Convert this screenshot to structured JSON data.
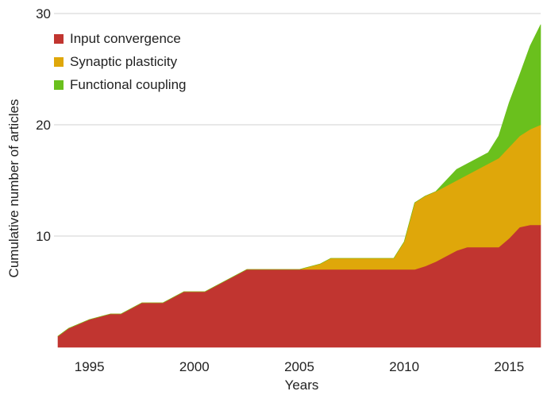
{
  "chart_data": {
    "type": "area",
    "stacked": true,
    "x": [
      1993.5,
      1994,
      1995,
      1996,
      1996.5,
      1997.5,
      1998.5,
      1999.5,
      2000.5,
      2001.5,
      2002.5,
      2003,
      2004,
      2005,
      2006,
      2006.5,
      2007,
      2008,
      2009,
      2009.5,
      2010,
      2010.5,
      2011,
      2011.5,
      2012,
      2012.5,
      2013,
      2014,
      2014.5,
      2015,
      2015.5,
      2016,
      2016.5
    ],
    "series": [
      {
        "name": "Input convergence",
        "color": "#c13530",
        "values": [
          1,
          1.7,
          2.5,
          3,
          3,
          4,
          4,
          5,
          5,
          6,
          7,
          7,
          7,
          7,
          7,
          7,
          7,
          7,
          7,
          7,
          7,
          7,
          7.3,
          7.7,
          8.2,
          8.7,
          9,
          9,
          9,
          9.8,
          10.8,
          11,
          11
        ]
      },
      {
        "name": "Synaptic plasticity",
        "color": "#dfa70a",
        "values": [
          0,
          0,
          0,
          0,
          0,
          0,
          0,
          0,
          0,
          0,
          0,
          0,
          0,
          0,
          0.5,
          1,
          1,
          1,
          1,
          1,
          2.5,
          6,
          6.3,
          6.3,
          6.3,
          6.3,
          6.5,
          7.5,
          8,
          8.2,
          8.2,
          8.6,
          9
        ]
      },
      {
        "name": "Functional coupling",
        "color": "#6ac01d",
        "values": [
          0,
          0,
          0,
          0,
          0,
          0,
          0,
          0,
          0,
          0,
          0,
          0,
          0,
          0,
          0,
          0,
          0,
          0,
          0,
          0,
          0,
          0,
          0,
          0,
          0.5,
          1,
          1,
          1,
          2,
          4,
          5.5,
          7.5,
          9
        ]
      }
    ],
    "xlim": [
      1993.5,
      2016.5
    ],
    "ylim": [
      0,
      30
    ],
    "x_ticks": [
      1995,
      2000,
      2005,
      2010,
      2015
    ],
    "y_ticks": [
      10,
      20,
      30
    ],
    "xlabel": "Years",
    "ylabel": "Cumulative number of articles",
    "grid": true,
    "legend_position": "top-left"
  }
}
